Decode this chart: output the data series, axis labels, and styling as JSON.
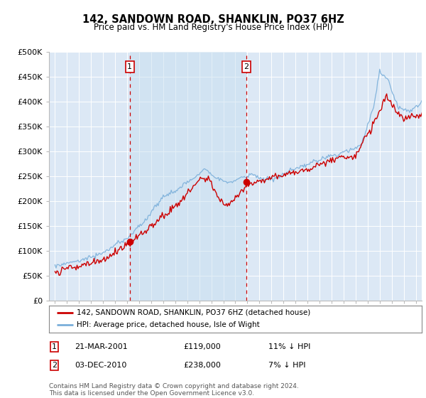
{
  "title": "142, SANDOWN ROAD, SHANKLIN, PO37 6HZ",
  "subtitle": "Price paid vs. HM Land Registry's House Price Index (HPI)",
  "legend_line1": "142, SANDOWN ROAD, SHANKLIN, PO37 6HZ (detached house)",
  "legend_line2": "HPI: Average price, detached house, Isle of Wight",
  "footnote": "Contains HM Land Registry data © Crown copyright and database right 2024.\nThis data is licensed under the Open Government Licence v3.0.",
  "marker1_date": "21-MAR-2001",
  "marker1_price": "£119,000",
  "marker1_hpi": "11% ↓ HPI",
  "marker1_x": 2001.22,
  "marker1_y": 119000,
  "marker2_date": "03-DEC-2010",
  "marker2_price": "£238,000",
  "marker2_hpi": "7% ↓ HPI",
  "marker2_x": 2010.92,
  "marker2_y": 238000,
  "price_color": "#cc0000",
  "hpi_color": "#7aafda",
  "shade_color": "#dce8f5",
  "bg_color": "#dce8f5",
  "ylim": [
    0,
    500000
  ],
  "yticks": [
    0,
    50000,
    100000,
    150000,
    200000,
    250000,
    300000,
    350000,
    400000,
    450000,
    500000
  ],
  "ytick_labels": [
    "£0",
    "£50K",
    "£100K",
    "£150K",
    "£200K",
    "£250K",
    "£300K",
    "£350K",
    "£400K",
    "£450K",
    "£500K"
  ],
  "xlim_start": 1994.5,
  "xlim_end": 2025.5
}
